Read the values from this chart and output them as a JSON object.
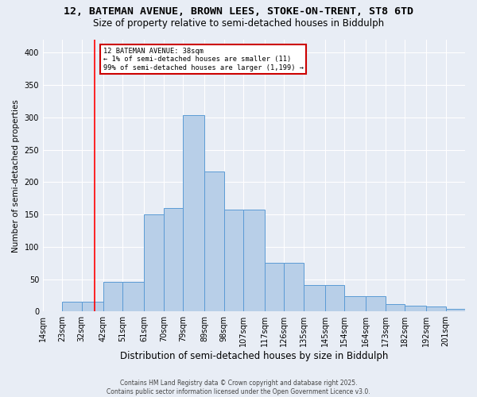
{
  "title": "12, BATEMAN AVENUE, BROWN LEES, STOKE-ON-TRENT, ST8 6TD",
  "subtitle": "Size of property relative to semi-detached houses in Biddulph",
  "xlabel": "Distribution of semi-detached houses by size in Biddulph",
  "ylabel": "Number of semi-detached properties",
  "categories": [
    "14sqm",
    "23sqm",
    "32sqm",
    "42sqm",
    "51sqm",
    "61sqm",
    "70sqm",
    "79sqm",
    "89sqm",
    "98sqm",
    "107sqm",
    "117sqm",
    "126sqm",
    "135sqm",
    "145sqm",
    "154sqm",
    "164sqm",
    "173sqm",
    "182sqm",
    "192sqm",
    "201sqm"
  ],
  "bar_heights": [
    0,
    15,
    15,
    46,
    46,
    150,
    160,
    303,
    216,
    158,
    158,
    75,
    75,
    41,
    41,
    24,
    24,
    12,
    9,
    8,
    4
  ],
  "bar_color": "#b8cfe8",
  "bar_edge_color": "#5b9bd5",
  "annotation_text": "12 BATEMAN AVENUE: 38sqm\n← 1% of semi-detached houses are smaller (11)\n99% of semi-detached houses are larger (1,199) →",
  "annotation_box_color": "#ffffff",
  "annotation_box_edge": "#cc0000",
  "red_line_x": 38,
  "ylim": [
    0,
    420
  ],
  "yticks": [
    0,
    50,
    100,
    150,
    200,
    250,
    300,
    350,
    400
  ],
  "background_color": "#e8edf5",
  "plot_background": "#e8edf5",
  "footer": "Contains HM Land Registry data © Crown copyright and database right 2025.\nContains public sector information licensed under the Open Government Licence v3.0.",
  "title_fontsize": 9.5,
  "subtitle_fontsize": 8.5,
  "xlabel_fontsize": 8.5,
  "ylabel_fontsize": 7.5,
  "tick_fontsize": 7,
  "footer_fontsize": 5.5
}
